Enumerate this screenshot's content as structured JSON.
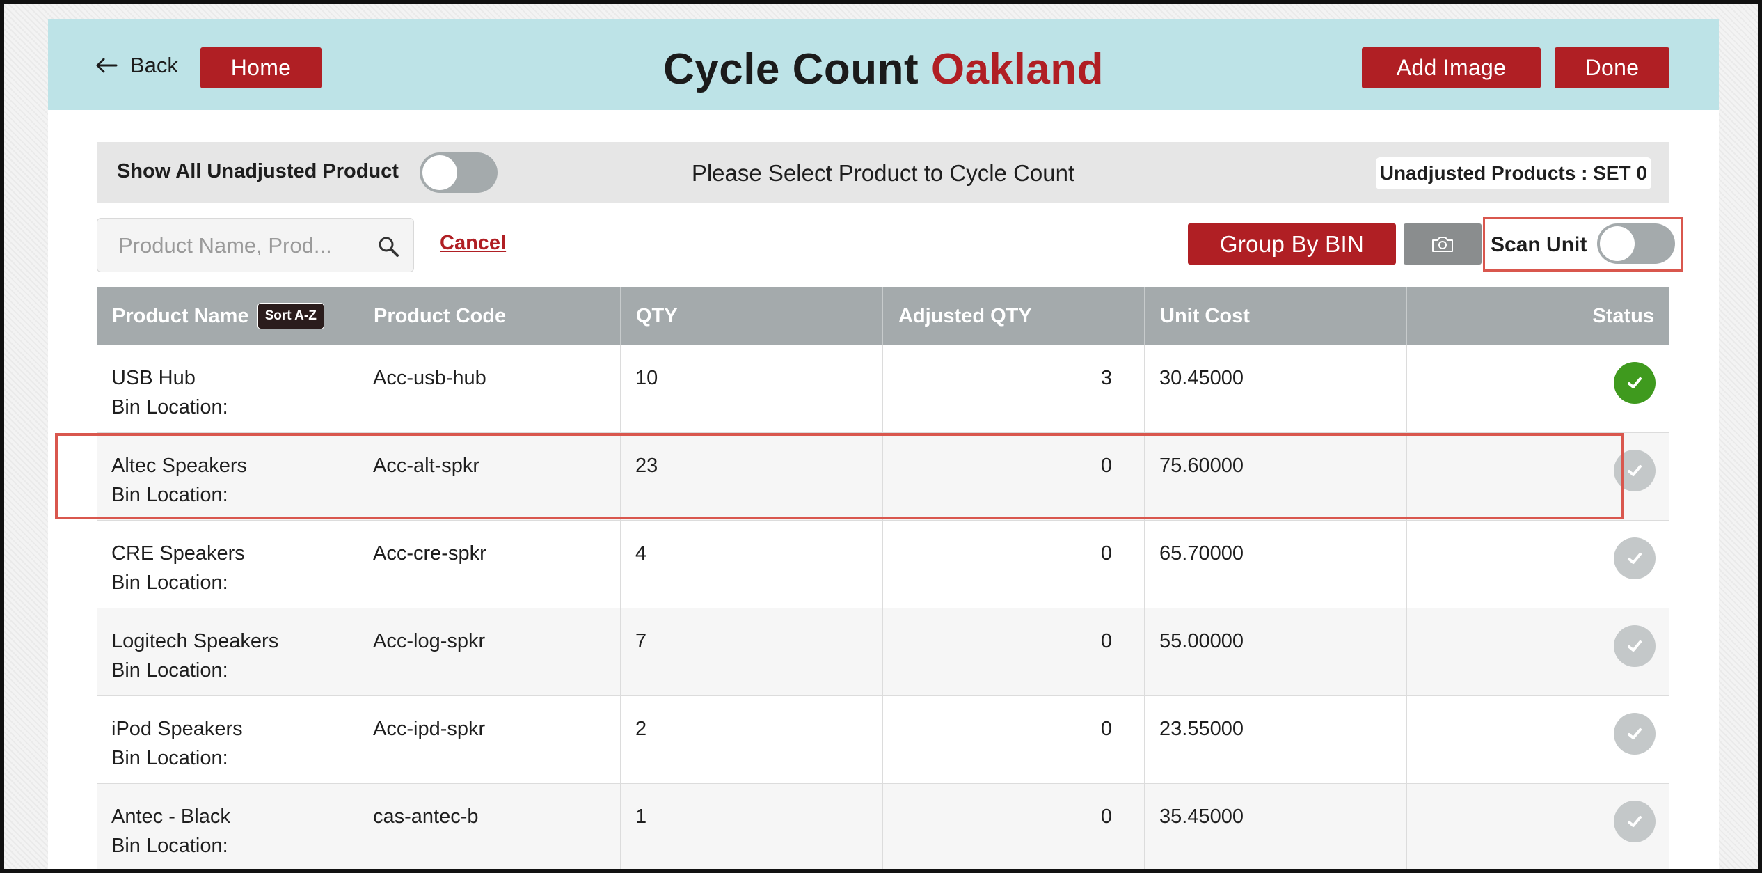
{
  "header": {
    "back_label": "Back",
    "home_label": "Home",
    "title_main": "Cycle Count",
    "title_location": "Oakland",
    "add_image_label": "Add Image",
    "done_label": "Done",
    "background_color": "#bde3e7",
    "accent_color": "#b01f24"
  },
  "toolbar": {
    "show_all_label": "Show All Unadjusted Product",
    "show_all_on": false,
    "prompt": "Please Select Product to Cycle Count",
    "unadjusted_badge": "Unadjusted Products : SET 0"
  },
  "search": {
    "placeholder": "Product Name, Prod...",
    "value": "",
    "cancel_label": "Cancel",
    "group_by_bin_label": "Group By BIN",
    "scan_unit_label": "Scan Unit",
    "scan_unit_on": false
  },
  "table": {
    "columns": [
      "Product Name",
      "Product Code",
      "QTY",
      "Adjusted QTY",
      "Unit Cost",
      "Status"
    ],
    "sort_label": "Sort A-Z",
    "bin_label": "Bin Location:",
    "rows": [
      {
        "name": "USB Hub",
        "code": "Acc-usb-hub",
        "qty": "10",
        "adjusted_qty": "3",
        "unit_cost": "30.45000",
        "status": "adjusted"
      },
      {
        "name": "Altec Speakers",
        "code": "Acc-alt-spkr",
        "qty": "23",
        "adjusted_qty": "0",
        "unit_cost": "75.60000",
        "status": "pending"
      },
      {
        "name": "CRE Speakers",
        "code": "Acc-cre-spkr",
        "qty": "4",
        "adjusted_qty": "0",
        "unit_cost": "65.70000",
        "status": "pending"
      },
      {
        "name": "Logitech Speakers",
        "code": "Acc-log-spkr",
        "qty": "7",
        "adjusted_qty": "0",
        "unit_cost": "55.00000",
        "status": "pending"
      },
      {
        "name": "iPod Speakers",
        "code": "Acc-ipd-spkr",
        "qty": "2",
        "adjusted_qty": "0",
        "unit_cost": "23.55000",
        "status": "pending"
      },
      {
        "name": "Antec - Black",
        "code": "cas-antec-b",
        "qty": "1",
        "adjusted_qty": "0",
        "unit_cost": "35.45000",
        "status": "pending"
      }
    ]
  }
}
